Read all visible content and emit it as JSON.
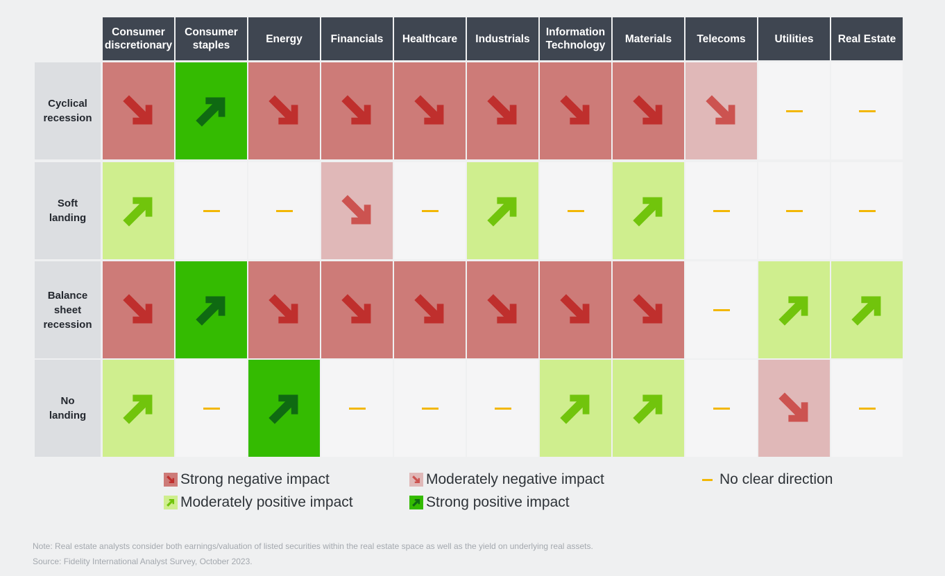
{
  "chart_data": {
    "type": "table",
    "columns": [
      "Consumer discretionary",
      "Consumer staples",
      "Energy",
      "Financials",
      "Healthcare",
      "Industrials",
      "Information Technology",
      "Materials",
      "Telecoms",
      "Utilities",
      "Real Estate"
    ],
    "column_lines": [
      [
        "Consumer",
        "discretionary"
      ],
      [
        "Consumer",
        "staples"
      ],
      [
        "Energy"
      ],
      [
        "Financials"
      ],
      [
        "Healthcare"
      ],
      [
        "Industrials"
      ],
      [
        "Information",
        "Technology"
      ],
      [
        "Materials"
      ],
      [
        "Telecoms"
      ],
      [
        "Utilities"
      ],
      [
        "Real Estate"
      ]
    ],
    "rows": [
      {
        "label_lines": [
          "Cyclical",
          "recession"
        ],
        "label": "Cyclical recession",
        "values": [
          "strong_negative",
          "strong_positive",
          "strong_negative",
          "strong_negative",
          "strong_negative",
          "strong_negative",
          "strong_negative",
          "strong_negative",
          "moderate_negative",
          "no_clear_direction",
          "no_clear_direction"
        ]
      },
      {
        "label_lines": [
          "Soft",
          "landing"
        ],
        "label": "Soft landing",
        "values": [
          "moderate_positive",
          "no_clear_direction",
          "no_clear_direction",
          "moderate_negative",
          "no_clear_direction",
          "moderate_positive",
          "no_clear_direction",
          "moderate_positive",
          "no_clear_direction",
          "no_clear_direction",
          "no_clear_direction"
        ]
      },
      {
        "label_lines": [
          "Balance",
          "sheet",
          "recession"
        ],
        "label": "Balance sheet recession",
        "values": [
          "strong_negative",
          "strong_positive",
          "strong_negative",
          "strong_negative",
          "strong_negative",
          "strong_negative",
          "strong_negative",
          "strong_negative",
          "no_clear_direction",
          "moderate_positive",
          "moderate_positive"
        ]
      },
      {
        "label_lines": [
          "No",
          "landing"
        ],
        "label": "No landing",
        "values": [
          "moderate_positive",
          "no_clear_direction",
          "strong_positive",
          "no_clear_direction",
          "no_clear_direction",
          "no_clear_direction",
          "moderate_positive",
          "moderate_positive",
          "no_clear_direction",
          "moderate_negative",
          "no_clear_direction"
        ]
      }
    ],
    "legend": [
      {
        "key": "strong_negative",
        "label": "Strong negative impact"
      },
      {
        "key": "moderate_negative",
        "label": "Moderately negative impact"
      },
      {
        "key": "no_clear_direction",
        "label": "No clear direction"
      },
      {
        "key": "moderate_positive",
        "label": "Moderately positive impact"
      },
      {
        "key": "strong_positive",
        "label": "Strong positive impact"
      }
    ],
    "styles": {
      "strong_negative": {
        "bg": "#cd7b78",
        "arrow": "#bf2f2d",
        "direction": "down"
      },
      "moderate_negative": {
        "bg": "#e0b8b8",
        "arrow": "#cc5350",
        "direction": "down"
      },
      "no_clear_direction": {
        "bg": "#f5f5f6",
        "arrow": "#f2b705",
        "direction": "none"
      },
      "moderate_positive": {
        "bg": "#cfee8e",
        "arrow": "#71c40c",
        "direction": "up"
      },
      "strong_positive": {
        "bg": "#34bb01",
        "arrow": "#0f6a12",
        "direction": "up"
      }
    }
  },
  "notes": {
    "note": "Note: Real estate analysts consider both earnings/valuation of listed securities within the real estate space as well as the yield on underlying real assets.",
    "source": "Source: Fidelity International Analyst Survey, October 2023."
  }
}
